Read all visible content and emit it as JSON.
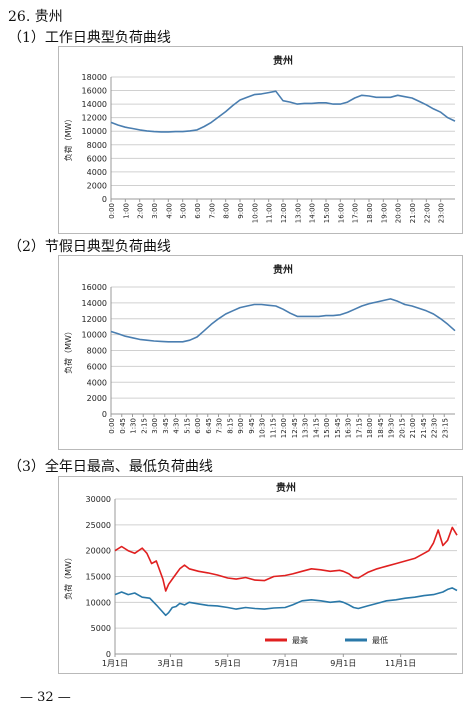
{
  "page": {
    "section": "26. 贵州",
    "headings": [
      "（1）工作日典型负荷曲线",
      "（2）节假日典型负荷曲线",
      "（3）全年日最高、最低负荷曲线"
    ],
    "page_number": "— 32 —"
  },
  "chart_data": [
    {
      "type": "line",
      "title": "贵州",
      "ylabel": "负荷（MW）",
      "ylim": [
        0,
        18000
      ],
      "yticks": [
        0,
        2000,
        4000,
        6000,
        8000,
        10000,
        12000,
        14000,
        16000,
        18000
      ],
      "ytick_labels": [
        "0",
        "2000",
        "4000",
        "6000",
        "8000",
        "10000",
        "12000",
        "14000",
        "16000",
        "18000"
      ],
      "xlim": [
        0,
        24
      ],
      "xticks": [
        0,
        1,
        2,
        3,
        4,
        5,
        6,
        7,
        8,
        9,
        10,
        11,
        12,
        13,
        14,
        15,
        16,
        17,
        18,
        19,
        20,
        21,
        22,
        23
      ],
      "xtick_labels": [
        "0:00",
        "1:00",
        "2:00",
        "3:00",
        "4:00",
        "5:00",
        "6:00",
        "7:00",
        "8:00",
        "9:00",
        "10:00",
        "11:00",
        "12:00",
        "13:00",
        "14:00",
        "15:00",
        "16:00",
        "17:00",
        "18:00",
        "19:00",
        "20:00",
        "21:00",
        "22:00",
        "23:00"
      ],
      "grid": "horizontal",
      "color": "#4a7eb0",
      "series": [
        {
          "x": [
            0,
            0.5,
            1,
            1.5,
            2,
            2.5,
            3,
            3.5,
            4,
            4.5,
            5,
            5.5,
            6,
            6.5,
            7,
            7.5,
            8,
            8.5,
            9,
            9.5,
            10,
            10.5,
            11,
            11.5,
            12,
            12.5,
            13,
            13.5,
            14,
            14.5,
            15,
            15.5,
            16,
            16.5,
            17,
            17.5,
            18,
            18.5,
            19,
            19.5,
            20,
            20.5,
            21,
            21.5,
            22,
            22.5,
            23,
            23.5,
            24
          ],
          "values": [
            11300,
            10900,
            10600,
            10400,
            10200,
            10050,
            9950,
            9900,
            9900,
            9950,
            9950,
            10050,
            10200,
            10700,
            11300,
            12100,
            12900,
            13800,
            14600,
            15000,
            15400,
            15500,
            15700,
            15900,
            14500,
            14300,
            14000,
            14100,
            14100,
            14200,
            14200,
            14000,
            14000,
            14300,
            14900,
            15300,
            15200,
            15000,
            15000,
            15000,
            15300,
            15100,
            14900,
            14400,
            13900,
            13300,
            12800,
            12000,
            11500
          ]
        }
      ]
    },
    {
      "type": "line",
      "title": "贵州",
      "ylabel": "负荷（MW）",
      "ylim": [
        0,
        16000
      ],
      "yticks": [
        0,
        2000,
        4000,
        6000,
        8000,
        10000,
        12000,
        14000,
        16000
      ],
      "ytick_labels": [
        "0",
        "2000",
        "4000",
        "6000",
        "8000",
        "10000",
        "12000",
        "14000",
        "16000"
      ],
      "xlim": [
        0,
        24
      ],
      "xticks": [
        0,
        0.75,
        1.5,
        2.25,
        3,
        3.75,
        4.5,
        5.25,
        6,
        6.75,
        7.5,
        8.25,
        9,
        9.75,
        10.5,
        11.25,
        12,
        12.75,
        13.5,
        14.25,
        15,
        15.75,
        16.5,
        17.25,
        18,
        18.75,
        19.5,
        20.25,
        21,
        21.75,
        22.5,
        23.25
      ],
      "xtick_labels": [
        "0:00",
        "0:45",
        "1:30",
        "2:15",
        "3:00",
        "3:45",
        "4:30",
        "5:15",
        "6:00",
        "6:45",
        "7:30",
        "8:15",
        "9:00",
        "9:45",
        "10:30",
        "11:15",
        "12:00",
        "12:45",
        "13:30",
        "14:15",
        "15:00",
        "15:45",
        "16:30",
        "17:15",
        "18:00",
        "18:45",
        "19:30",
        "20:15",
        "21:00",
        "21:45",
        "22:30",
        "23:15"
      ],
      "grid": "horizontal",
      "color": "#4a7eb0",
      "series": [
        {
          "x": [
            0,
            0.5,
            1,
            1.5,
            2,
            2.5,
            3,
            3.5,
            4,
            4.5,
            5,
            5.5,
            6,
            6.5,
            7,
            7.5,
            8,
            8.5,
            9,
            9.5,
            10,
            10.5,
            11,
            11.5,
            12,
            12.5,
            13,
            13.5,
            14,
            14.5,
            15,
            15.5,
            16,
            16.5,
            17,
            17.5,
            18,
            18.5,
            19,
            19.5,
            20,
            20.5,
            21,
            21.5,
            22,
            22.5,
            23,
            23.5,
            24
          ],
          "values": [
            10400,
            10100,
            9800,
            9600,
            9400,
            9300,
            9200,
            9150,
            9100,
            9100,
            9100,
            9300,
            9700,
            10500,
            11300,
            12000,
            12600,
            13000,
            13400,
            13600,
            13800,
            13800,
            13700,
            13600,
            13200,
            12700,
            12300,
            12300,
            12300,
            12300,
            12400,
            12400,
            12500,
            12800,
            13200,
            13600,
            13900,
            14100,
            14300,
            14500,
            14200,
            13800,
            13600,
            13300,
            13000,
            12600,
            12000,
            11300,
            10500
          ]
        }
      ]
    },
    {
      "type": "line",
      "title": "贵州",
      "ylabel": "负荷（MW）",
      "ylim": [
        0,
        30000
      ],
      "yticks": [
        0,
        5000,
        10000,
        15000,
        20000,
        25000,
        30000
      ],
      "ytick_labels": [
        "0",
        "5000",
        "10000",
        "15000",
        "20000",
        "25000",
        "30000"
      ],
      "xlim": [
        1,
        365
      ],
      "xticks": [
        1,
        60,
        121,
        182,
        244,
        305
      ],
      "xtick_labels": [
        "1月1日",
        "3月1日",
        "5月1日",
        "7月1日",
        "9月1日",
        "11月1日"
      ],
      "grid": "horizontal",
      "legend": "bottom",
      "series": [
        {
          "name": "最高",
          "color": "#e02020",
          "x": [
            1,
            8,
            15,
            22,
            30,
            35,
            40,
            45,
            52,
            55,
            58,
            62,
            66,
            70,
            75,
            80,
            90,
            100,
            110,
            121,
            130,
            140,
            150,
            160,
            170,
            182,
            190,
            200,
            210,
            220,
            230,
            240,
            244,
            250,
            255,
            260,
            270,
            280,
            290,
            300,
            310,
            320,
            330,
            335,
            340,
            345,
            350,
            355,
            360,
            365
          ],
          "values": [
            20000,
            20800,
            20000,
            19500,
            20500,
            19500,
            17500,
            18000,
            14500,
            12200,
            13500,
            14500,
            15500,
            16500,
            17200,
            16500,
            16000,
            15700,
            15300,
            14700,
            14500,
            14800,
            14300,
            14200,
            15000,
            15200,
            15500,
            16000,
            16500,
            16300,
            16000,
            16200,
            16000,
            15500,
            14800,
            14700,
            15800,
            16500,
            17000,
            17500,
            18000,
            18500,
            19500,
            20000,
            21500,
            24000,
            21000,
            22000,
            24500,
            23000
          ]
        },
        {
          "name": "最低",
          "color": "#2a78a8",
          "x": [
            1,
            8,
            15,
            22,
            30,
            38,
            45,
            50,
            55,
            58,
            62,
            66,
            70,
            75,
            80,
            90,
            100,
            110,
            121,
            130,
            140,
            150,
            160,
            170,
            182,
            190,
            200,
            210,
            220,
            230,
            240,
            244,
            250,
            255,
            260,
            270,
            280,
            290,
            300,
            310,
            320,
            330,
            340,
            350,
            355,
            360,
            365
          ],
          "values": [
            11500,
            12000,
            11500,
            11800,
            11000,
            10800,
            9500,
            8500,
            7500,
            8000,
            9000,
            9200,
            9800,
            9500,
            10000,
            9700,
            9400,
            9300,
            9000,
            8700,
            9000,
            8800,
            8700,
            8900,
            9000,
            9500,
            10300,
            10500,
            10300,
            10000,
            10200,
            10000,
            9500,
            9000,
            8800,
            9300,
            9800,
            10300,
            10500,
            10800,
            11000,
            11300,
            11500,
            12000,
            12500,
            12800,
            12300
          ]
        }
      ]
    }
  ]
}
